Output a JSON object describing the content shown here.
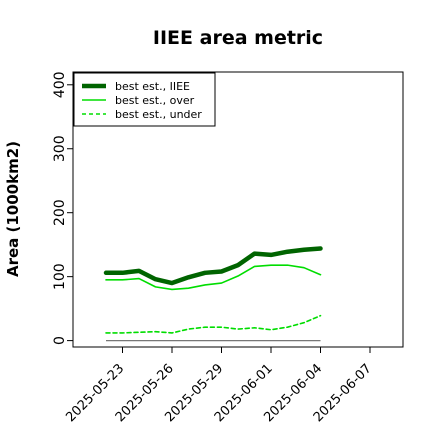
{
  "chart_data": {
    "type": "line",
    "title": "IIEE area metric",
    "xlabel": "",
    "ylabel": "Area (1000km2)",
    "ylim": [
      -10,
      420
    ],
    "xlim": [
      "2025-05-20",
      "2025-06-09"
    ],
    "yticks": [
      "0",
      "100",
      "200",
      "300",
      "400"
    ],
    "xticks": [
      "2025-05-23",
      "2025-05-26",
      "2025-05-29",
      "2025-06-01",
      "2025-06-04",
      "2025-06-07"
    ],
    "grid": false,
    "legend_position": "top-left",
    "x": [
      "2025-05-22",
      "2025-05-23",
      "2025-05-24",
      "2025-05-25",
      "2025-05-26",
      "2025-05-27",
      "2025-05-28",
      "2025-05-29",
      "2025-05-30",
      "2025-05-31",
      "2025-06-01",
      "2025-06-02",
      "2025-06-03",
      "2025-06-04"
    ],
    "series": [
      {
        "name": "best est., IIEE",
        "color": "#006400",
        "style": "solid",
        "width": "thick",
        "values": [
          106,
          106,
          109,
          96,
          90,
          99,
          106,
          108,
          118,
          136,
          134,
          139,
          142,
          144
        ]
      },
      {
        "name": "best est., over",
        "color": "#00dd00",
        "style": "solid",
        "width": "thin",
        "values": [
          95,
          95,
          97,
          84,
          80,
          82,
          87,
          90,
          101,
          116,
          118,
          118,
          114,
          103
        ]
      },
      {
        "name": "best est., under",
        "color": "#00dd00",
        "style": "dashed",
        "width": "thin",
        "values": [
          12,
          12,
          13,
          14,
          12,
          18,
          21,
          21,
          18,
          20,
          17,
          21,
          28,
          39
        ]
      }
    ],
    "reference_line": {
      "y": 0,
      "color": "#777777"
    }
  }
}
